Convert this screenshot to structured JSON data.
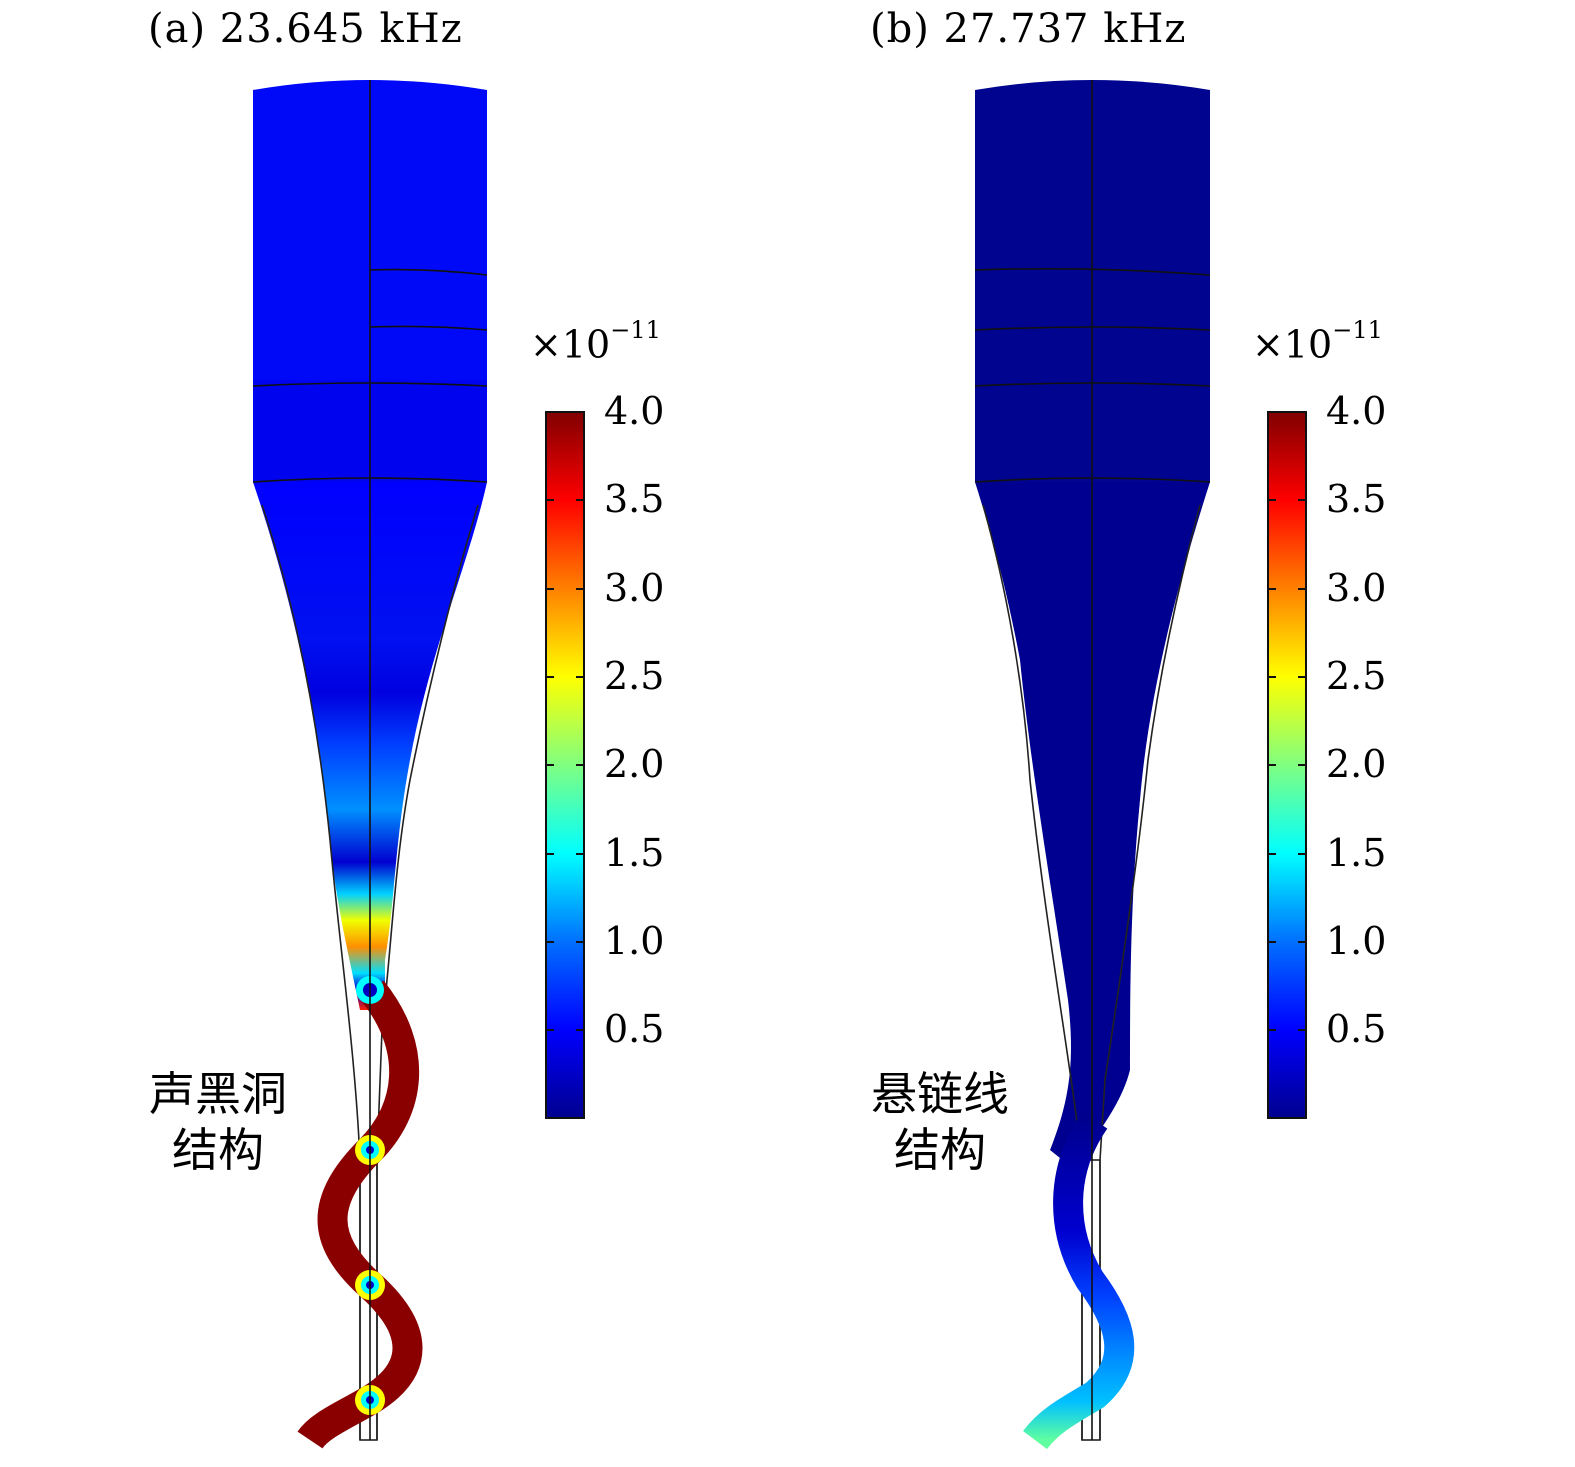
{
  "panels": [
    {
      "title": "(a) 23.645 kHz",
      "structure_label_line1": "声黑洞",
      "structure_label_line2": "结构",
      "colorbar_exponent_base": "×10",
      "colorbar_exponent_power": "−11",
      "colorbar_ticks": [
        "4.0",
        "3.5",
        "3.0",
        "2.5",
        "2.0",
        "1.5",
        "1.0",
        "0.5"
      ]
    },
    {
      "title": "(b) 27.737 kHz",
      "structure_label_line1": "悬链线",
      "structure_label_line2": "结构",
      "colorbar_exponent_base": "×10",
      "colorbar_exponent_power": "−11",
      "colorbar_ticks": [
        "4.0",
        "3.5",
        "3.0",
        "2.5",
        "2.0",
        "1.5",
        "1.0",
        "0.5"
      ]
    }
  ],
  "colormap": [
    "#00008f",
    "#0000ff",
    "#0080ff",
    "#00ffff",
    "#80ff80",
    "#ffff00",
    "#ff8000",
    "#ff0000",
    "#800000"
  ]
}
